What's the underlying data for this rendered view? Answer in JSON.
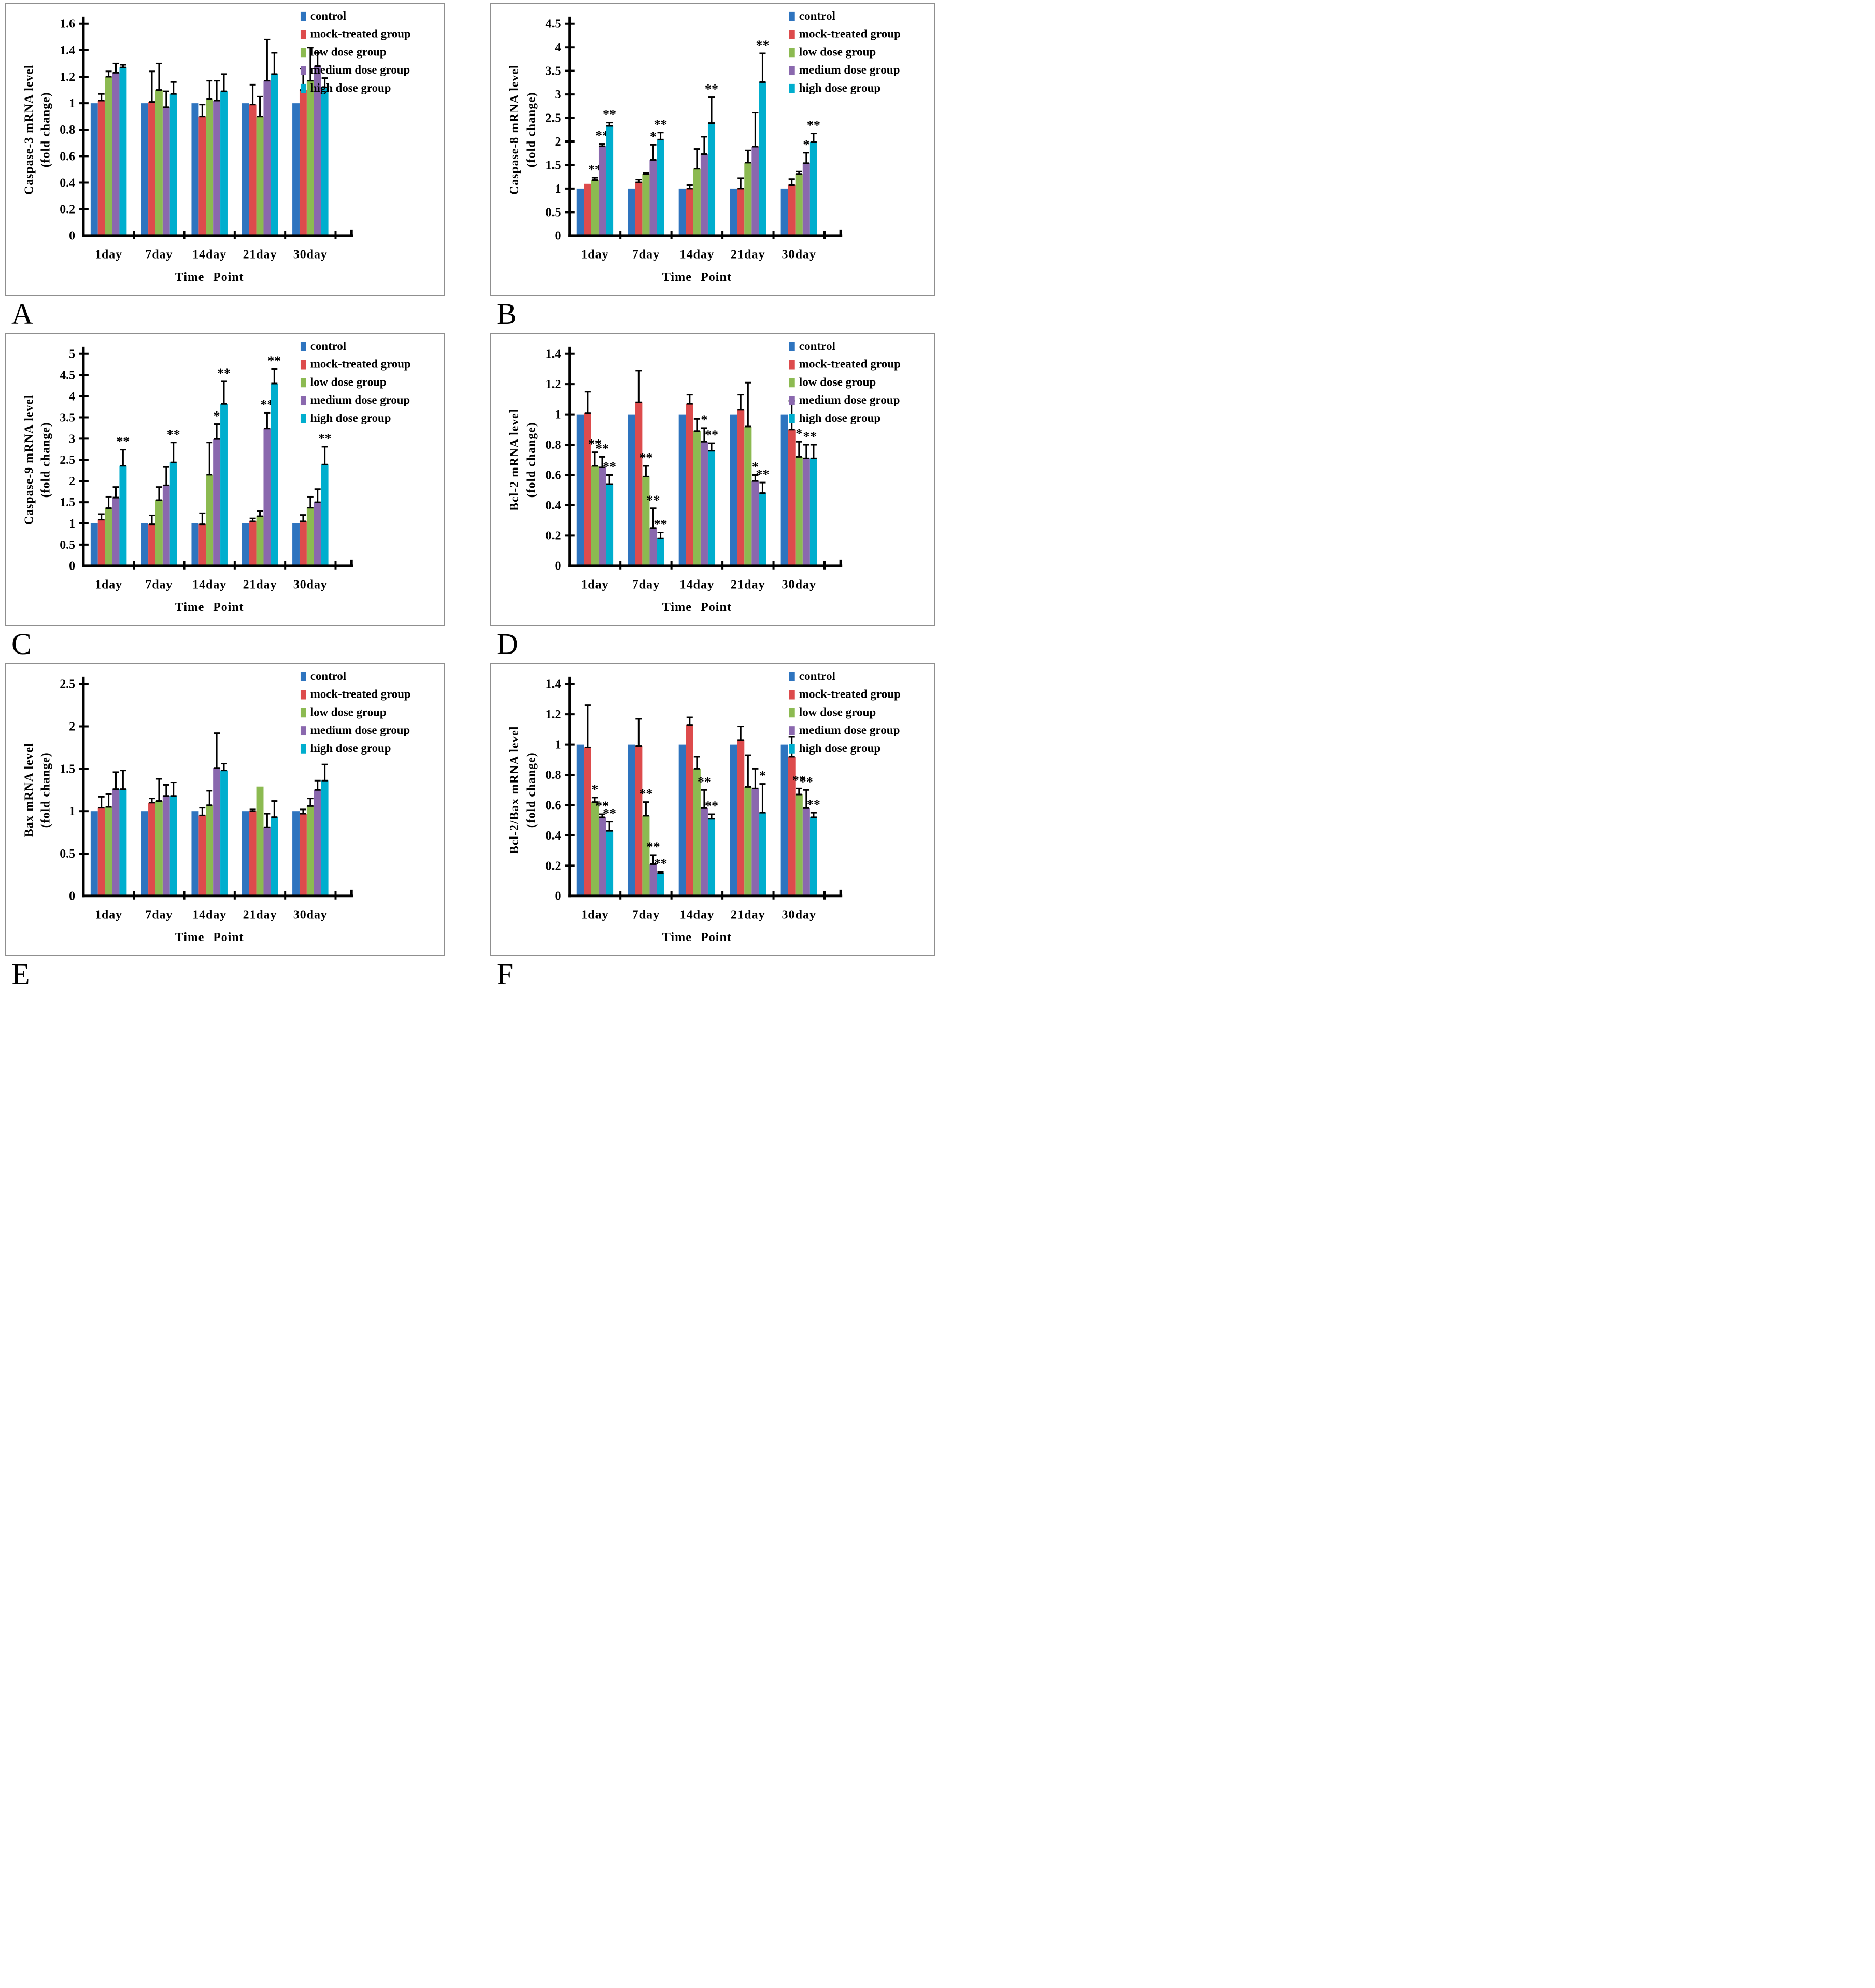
{
  "panels": [
    {
      "letter": "A"
    },
    {
      "letter": "B"
    },
    {
      "letter": "C"
    },
    {
      "letter": "D"
    },
    {
      "letter": "E"
    },
    {
      "letter": "F"
    }
  ],
  "legend": {
    "position": "top-right",
    "items": [
      {
        "label": "control",
        "color": "#2E74BF"
      },
      {
        "label": "mock-treated group",
        "color": "#DD4B4C"
      },
      {
        "label": "low dose group",
        "color": "#8CBA51"
      },
      {
        "label": "medium dose group",
        "color": "#8A68AE"
      },
      {
        "label": "high dose group",
        "color": "#00AECE"
      }
    ]
  },
  "chart_data": [
    {
      "type": "bar",
      "panel": "A",
      "ylabel": "Caspase-3 mRNA level",
      "ylabel_line2": "(fold change)",
      "xlabel": "Time Point",
      "categories": [
        "1day",
        "7day",
        "14day",
        "21day",
        "30day"
      ],
      "ylim": [
        0,
        1.6
      ],
      "ytick_step": 0.2,
      "grid": false,
      "legend_position": "top-right",
      "series": [
        {
          "name": "control",
          "values": [
            1.0,
            1.0,
            1.0,
            1.0,
            1.0
          ],
          "errors": [
            0,
            0,
            0,
            0,
            0
          ],
          "sig": [
            "",
            "",
            "",
            "",
            ""
          ]
        },
        {
          "name": "mock-treated group",
          "values": [
            1.02,
            1.01,
            0.9,
            0.99,
            1.1
          ],
          "errors": [
            0.05,
            0.23,
            0.09,
            0.15,
            0.16
          ],
          "sig": [
            "",
            "",
            "",
            "",
            ""
          ]
        },
        {
          "name": "low dose group",
          "values": [
            1.2,
            1.1,
            1.03,
            0.9,
            1.17
          ],
          "errors": [
            0.04,
            0.2,
            0.14,
            0.15,
            0.25
          ],
          "sig": [
            "",
            "",
            "",
            "",
            ""
          ]
        },
        {
          "name": "medium dose group",
          "values": [
            1.23,
            0.97,
            1.02,
            1.17,
            1.28
          ],
          "errors": [
            0.07,
            0.12,
            0.15,
            0.31,
            0.1
          ],
          "sig": [
            "",
            "",
            "",
            "",
            ""
          ]
        },
        {
          "name": "high dose group",
          "values": [
            1.27,
            1.07,
            1.09,
            1.22,
            1.12
          ],
          "errors": [
            0.02,
            0.09,
            0.13,
            0.16,
            0.07
          ],
          "sig": [
            "",
            "",
            "",
            "",
            ""
          ]
        }
      ]
    },
    {
      "type": "bar",
      "panel": "B",
      "ylabel": "Caspase-8 mRNA level",
      "ylabel_line2": "(fold change)",
      "xlabel": "Time Point",
      "categories": [
        "1day",
        "7day",
        "14day",
        "21day",
        "30day"
      ],
      "ylim": [
        0,
        4.5
      ],
      "ytick_step": 0.5,
      "grid": false,
      "legend_position": "top-right",
      "series": [
        {
          "name": "control",
          "values": [
            1.0,
            1.0,
            1.0,
            1.0,
            1.0
          ],
          "errors": [
            0,
            0,
            0,
            0,
            0
          ],
          "sig": [
            "",
            "",
            "",
            "",
            ""
          ]
        },
        {
          "name": "mock-treated group",
          "values": [
            1.1,
            1.13,
            1.0,
            1.0,
            1.08
          ],
          "errors": [
            0,
            0.06,
            0.08,
            0.22,
            0.12
          ],
          "sig": [
            "",
            "",
            "",
            "",
            ""
          ]
        },
        {
          "name": "low dose group",
          "values": [
            1.18,
            1.31,
            1.42,
            1.55,
            1.31
          ],
          "errors": [
            0.05,
            0.03,
            0.42,
            0.26,
            0.06
          ],
          "sig": [
            "**",
            "",
            "",
            "",
            ""
          ]
        },
        {
          "name": "medium dose group",
          "values": [
            1.9,
            1.61,
            1.73,
            1.89,
            1.54
          ],
          "errors": [
            0.05,
            0.32,
            0.37,
            0.72,
            0.22
          ],
          "sig": [
            "**",
            "*",
            "",
            "",
            "*"
          ]
        },
        {
          "name": "high dose group",
          "values": [
            2.33,
            2.04,
            2.39,
            3.26,
            1.99
          ],
          "errors": [
            0.07,
            0.15,
            0.55,
            0.61,
            0.18
          ],
          "sig": [
            "**",
            "**",
            "**",
            "**",
            "**"
          ]
        }
      ]
    },
    {
      "type": "bar",
      "panel": "C",
      "ylabel": "Caspase-9 mRNA level",
      "ylabel_line2": "(fold change)",
      "xlabel": "Time Point",
      "categories": [
        "1day",
        "7day",
        "14day",
        "21day",
        "30day"
      ],
      "ylim": [
        0,
        5
      ],
      "ytick_step": 0.5,
      "grid": false,
      "legend_position": "top-right",
      "series": [
        {
          "name": "control",
          "values": [
            1.0,
            1.0,
            1.0,
            1.0,
            1.0
          ],
          "errors": [
            0,
            0,
            0,
            0,
            0
          ],
          "sig": [
            "",
            "",
            "",
            "",
            ""
          ]
        },
        {
          "name": "mock-treated group",
          "values": [
            1.09,
            0.98,
            0.98,
            1.05,
            1.05
          ],
          "errors": [
            0.13,
            0.21,
            0.26,
            0.07,
            0.15
          ],
          "sig": [
            "",
            "",
            "",
            "",
            ""
          ]
        },
        {
          "name": "low dose group",
          "values": [
            1.36,
            1.55,
            2.15,
            1.17,
            1.37
          ],
          "errors": [
            0.27,
            0.31,
            0.76,
            0.12,
            0.26
          ],
          "sig": [
            "",
            "",
            "",
            "",
            ""
          ]
        },
        {
          "name": "medium dose group",
          "values": [
            1.61,
            1.9,
            2.99,
            3.24,
            1.5
          ],
          "errors": [
            0.25,
            0.43,
            0.35,
            0.37,
            0.31
          ],
          "sig": [
            "",
            "",
            "*",
            "**",
            ""
          ]
        },
        {
          "name": "high dose group",
          "values": [
            2.36,
            2.44,
            3.82,
            4.3,
            2.39
          ],
          "errors": [
            0.38,
            0.47,
            0.53,
            0.34,
            0.42
          ],
          "sig": [
            "**",
            "**",
            "**",
            "**",
            "**"
          ]
        }
      ]
    },
    {
      "type": "bar",
      "panel": "D",
      "ylabel": "Bcl-2 mRNA level",
      "ylabel_line2": "(fold change)",
      "xlabel": "Time Point",
      "categories": [
        "1day",
        "7day",
        "14day",
        "21day",
        "30day"
      ],
      "ylim": [
        0,
        1.4
      ],
      "ytick_step": 0.2,
      "grid": false,
      "legend_position": "top-right",
      "series": [
        {
          "name": "control",
          "values": [
            1.0,
            1.0,
            1.0,
            1.0,
            1.0
          ],
          "errors": [
            0,
            0,
            0,
            0,
            0
          ],
          "sig": [
            "",
            "",
            "",
            "",
            ""
          ]
        },
        {
          "name": "mock-treated group",
          "values": [
            1.01,
            1.08,
            1.07,
            1.03,
            0.9
          ],
          "errors": [
            0.14,
            0.21,
            0.06,
            0.1,
            0.19
          ],
          "sig": [
            "",
            "",
            "",
            "",
            ""
          ]
        },
        {
          "name": "low dose group",
          "values": [
            0.66,
            0.59,
            0.89,
            0.92,
            0.72
          ],
          "errors": [
            0.09,
            0.07,
            0.08,
            0.29,
            0.1
          ],
          "sig": [
            "**",
            "**",
            "",
            "",
            "*"
          ]
        },
        {
          "name": "medium dose group",
          "values": [
            0.65,
            0.25,
            0.82,
            0.56,
            0.71
          ],
          "errors": [
            0.07,
            0.13,
            0.09,
            0.04,
            0.09
          ],
          "sig": [
            "**",
            "**",
            "*",
            "*",
            "*"
          ]
        },
        {
          "name": "high dose group",
          "values": [
            0.54,
            0.18,
            0.76,
            0.48,
            0.71
          ],
          "errors": [
            0.06,
            0.04,
            0.05,
            0.07,
            0.09
          ],
          "sig": [
            "**",
            "**",
            "**",
            "**",
            "*"
          ]
        }
      ]
    },
    {
      "type": "bar",
      "panel": "E",
      "ylabel": "Bax mRNA level",
      "ylabel_line2": "(fold change)",
      "xlabel": "Time Point",
      "categories": [
        "1day",
        "7day",
        "14day",
        "21day",
        "30day"
      ],
      "ylim": [
        0,
        2.5
      ],
      "ytick_step": 0.5,
      "grid": false,
      "legend_position": "top-right",
      "series": [
        {
          "name": "control",
          "values": [
            1.0,
            1.0,
            1.0,
            1.0,
            1.0
          ],
          "errors": [
            0,
            0,
            0,
            0,
            0
          ],
          "sig": [
            "",
            "",
            "",
            "",
            ""
          ]
        },
        {
          "name": "mock-treated group",
          "values": [
            1.04,
            1.1,
            0.95,
            1.0,
            0.97
          ],
          "errors": [
            0.13,
            0.05,
            0.09,
            0.02,
            0.05
          ],
          "sig": [
            "",
            "",
            "",
            "",
            ""
          ]
        },
        {
          "name": "low dose group",
          "values": [
            1.05,
            1.12,
            1.07,
            1.29,
            1.06
          ],
          "errors": [
            0.15,
            0.26,
            0.17,
            0,
            0.09
          ],
          "sig": [
            "",
            "",
            "",
            "",
            ""
          ]
        },
        {
          "name": "medium dose group",
          "values": [
            1.26,
            1.18,
            1.51,
            0.81,
            1.25
          ],
          "errors": [
            0.2,
            0.13,
            0.41,
            0.16,
            0.11
          ],
          "sig": [
            "",
            "",
            "",
            "",
            ""
          ]
        },
        {
          "name": "high dose group",
          "values": [
            1.26,
            1.18,
            1.48,
            0.93,
            1.36
          ],
          "errors": [
            0.22,
            0.16,
            0.08,
            0.19,
            0.19
          ],
          "sig": [
            "",
            "",
            "",
            "",
            ""
          ]
        }
      ]
    },
    {
      "type": "bar",
      "panel": "F",
      "ylabel": "Bcl-2/Bax mRNA level",
      "ylabel_line2": "(fold change)",
      "xlabel": "Time Point",
      "categories": [
        "1day",
        "7day",
        "14day",
        "21day",
        "30day"
      ],
      "ylim": [
        0,
        1.4
      ],
      "ytick_step": 0.2,
      "grid": false,
      "legend_position": "top-right",
      "series": [
        {
          "name": "control",
          "values": [
            1.0,
            1.0,
            1.0,
            1.0,
            1.0
          ],
          "errors": [
            0,
            0,
            0,
            0,
            0
          ],
          "sig": [
            "",
            "",
            "",
            "",
            ""
          ]
        },
        {
          "name": "mock-treated group",
          "values": [
            0.98,
            0.99,
            1.13,
            1.03,
            0.92
          ],
          "errors": [
            0.28,
            0.18,
            0.05,
            0.09,
            0.13
          ],
          "sig": [
            "",
            "",
            "",
            "",
            ""
          ]
        },
        {
          "name": "low dose group",
          "values": [
            0.62,
            0.53,
            0.84,
            0.72,
            0.67
          ],
          "errors": [
            0.03,
            0.09,
            0.08,
            0.21,
            0.04
          ],
          "sig": [
            "*",
            "**",
            "",
            "",
            "**"
          ]
        },
        {
          "name": "medium dose group",
          "values": [
            0.52,
            0.21,
            0.58,
            0.71,
            0.58
          ],
          "errors": [
            0.02,
            0.06,
            0.12,
            0.13,
            0.12
          ],
          "sig": [
            "**",
            "**",
            "**",
            "",
            "**"
          ]
        },
        {
          "name": "high dose group",
          "values": [
            0.43,
            0.15,
            0.51,
            0.55,
            0.52
          ],
          "errors": [
            0.06,
            0.01,
            0.03,
            0.19,
            0.03
          ],
          "sig": [
            "**",
            "**",
            "**",
            "*",
            "**"
          ]
        }
      ]
    }
  ]
}
